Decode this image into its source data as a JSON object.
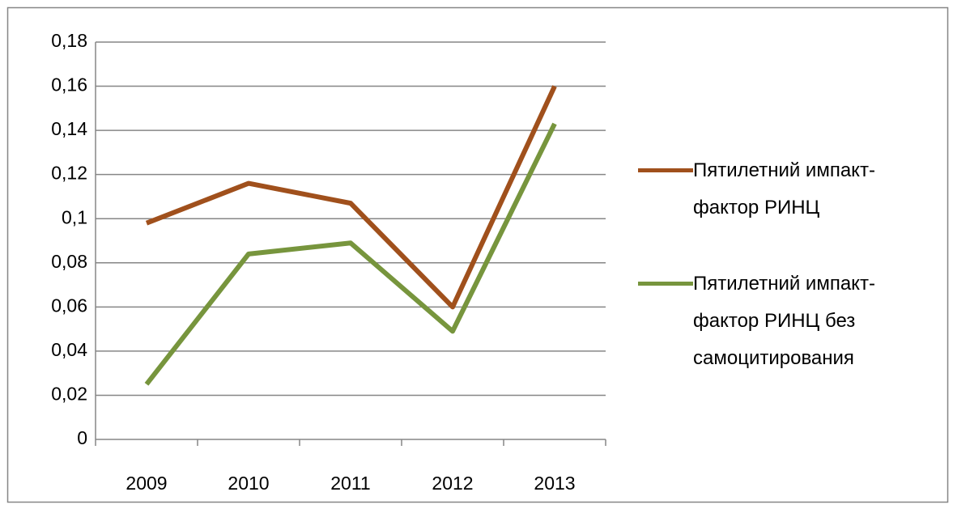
{
  "chart_data": {
    "type": "line",
    "categories": [
      "2009",
      "2010",
      "2011",
      "2012",
      "2013"
    ],
    "series": [
      {
        "name": "Пятилетний импакт-фактор РИНЦ",
        "color": "#a0501c",
        "values": [
          0.098,
          0.116,
          0.107,
          0.06,
          0.16
        ]
      },
      {
        "name": "Пятилетний импакт-фактор РИНЦ без самоцитирования",
        "color": "#77953d",
        "values": [
          0.025,
          0.084,
          0.089,
          0.049,
          0.143
        ]
      }
    ],
    "ylim": [
      0,
      0.18
    ],
    "yticks": [
      0,
      {
        "value": 0.02,
        "label": "0,02"
      },
      {
        "value": 0.04,
        "label": "0,04"
      },
      {
        "value": 0.06,
        "label": "0,06"
      },
      {
        "value": 0.08,
        "label": "0,08"
      },
      {
        "value": 0.1,
        "label": "0,1"
      },
      {
        "value": 0.12,
        "label": "0,12"
      },
      {
        "value": 0.14,
        "label": "0,14"
      },
      {
        "value": 0.16,
        "label": "0,16"
      },
      {
        "value": 0.18,
        "label": "0,18"
      }
    ],
    "grid": true,
    "legend": "right"
  }
}
